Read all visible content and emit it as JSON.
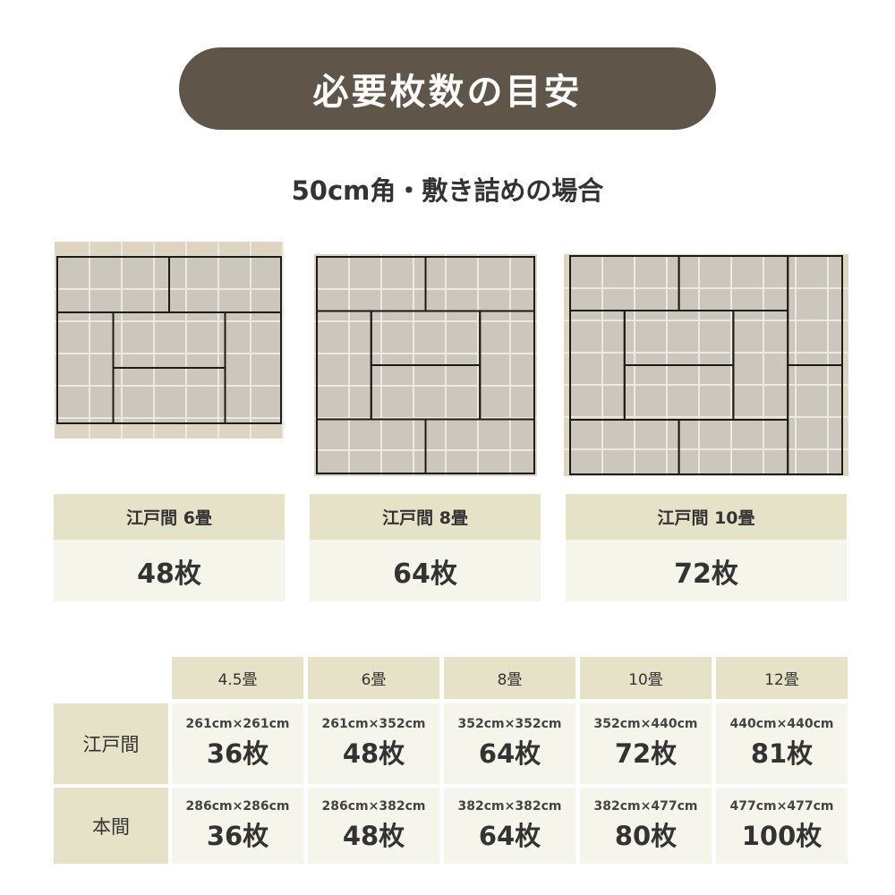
{
  "title": "必要枚数の目安",
  "subtitle": "50cm角・敷き詰めの場合",
  "colors": {
    "pill": "#5f5549",
    "header_cell": "#e6e2c8",
    "body_cell": "#f6f5ec",
    "tile": "#cbc7bd",
    "border": "#ddd5c2"
  },
  "layouts": [
    {
      "label": "江戸間 6畳",
      "count": "48枚"
    },
    {
      "label": "江戸間 8畳",
      "count": "64枚"
    },
    {
      "label": "江戸間 10畳",
      "count": "72枚"
    }
  ],
  "table": {
    "columns": [
      "4.5畳",
      "6畳",
      "8畳",
      "10畳",
      "12畳"
    ],
    "rows": [
      {
        "label": "江戸間",
        "cells": [
          {
            "size": "261cm×261cm",
            "count": "36枚"
          },
          {
            "size": "261cm×352cm",
            "count": "48枚"
          },
          {
            "size": "352cm×352cm",
            "count": "64枚"
          },
          {
            "size": "352cm×440cm",
            "count": "72枚"
          },
          {
            "size": "440cm×440cm",
            "count": "81枚"
          }
        ]
      },
      {
        "label": "本間",
        "cells": [
          {
            "size": "286cm×286cm",
            "count": "36枚"
          },
          {
            "size": "286cm×382cm",
            "count": "48枚"
          },
          {
            "size": "382cm×382cm",
            "count": "64枚"
          },
          {
            "size": "382cm×477cm",
            "count": "80枚"
          },
          {
            "size": "477cm×477cm",
            "count": "100枚"
          }
        ]
      }
    ]
  }
}
